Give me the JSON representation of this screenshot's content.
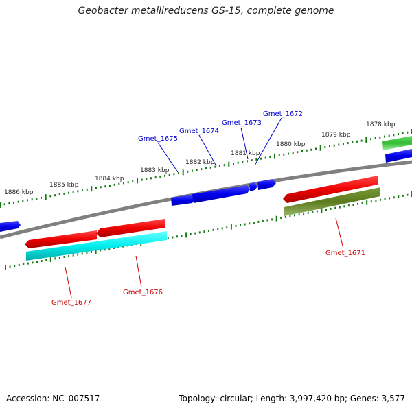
{
  "title": "Geobacter metallireducens GS-15, complete genome",
  "footer": {
    "accession": "Accession: NC_007517",
    "summary": "Topology: circular; Length: 3,997,420 bp; Genes: 3,577"
  },
  "colors": {
    "backbone": "#808080",
    "tick": "#1a7a1a",
    "forward_label": "#0000cc",
    "reverse_label": "#cc0000",
    "blue": "#0000ee",
    "red": "#ee0000",
    "cyan": "#00eeee",
    "olive": "#5c7a1e",
    "green": "#33bb33"
  },
  "kbp_labels": [
    "1878 kbp",
    "1879 kbp",
    "1880 kbp",
    "1881 kbp",
    "1882 kbp",
    "1883 kbp",
    "1884 kbp",
    "1885 kbp",
    "1886 kbp"
  ],
  "gene_labels": {
    "top": [
      "Gmet_1675",
      "Gmet_1674",
      "Gmet_1673",
      "Gmet_1672"
    ],
    "bottom": [
      "Gmet_1677",
      "Gmet_1676",
      "Gmet_1671"
    ]
  }
}
